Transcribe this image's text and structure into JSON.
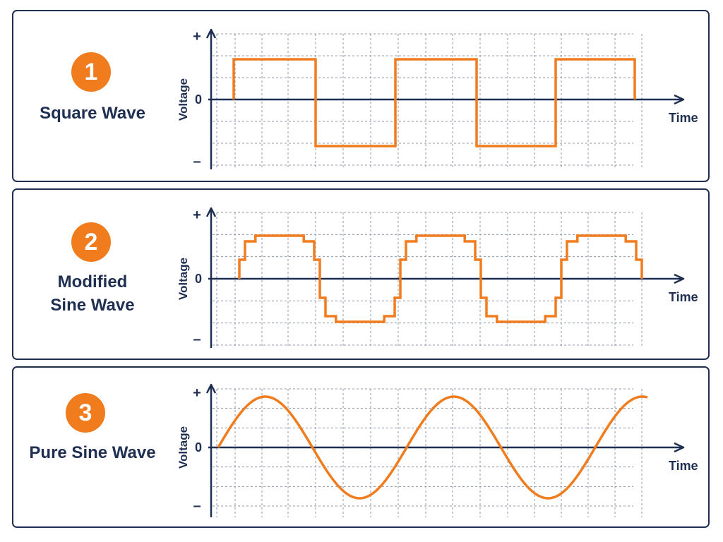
{
  "panels": [
    {
      "number": "1",
      "title_lines": [
        "Square Wave"
      ],
      "wave": "square",
      "axis": {
        "y_label": "Voltage",
        "x_label": "Time",
        "plus": "+",
        "zero": "0",
        "minus": "–"
      }
    },
    {
      "number": "2",
      "title_lines": [
        "Modified",
        "Sine Wave"
      ],
      "wave": "modified-sine",
      "axis": {
        "y_label": "Voltage",
        "x_label": "Time",
        "plus": "+",
        "zero": "0",
        "minus": "–"
      }
    },
    {
      "number": "3",
      "title_lines": [
        "Pure Sine Wave"
      ],
      "wave": "pure-sine",
      "axis": {
        "y_label": "Voltage",
        "x_label": "Time",
        "plus": "+",
        "zero": "0",
        "minus": "–"
      }
    }
  ],
  "colors": {
    "wave": "#f07c1e",
    "badge": "#f07c1e",
    "axis": "#1f2f52",
    "grid": "#8d97a8",
    "border": "#1f2f52"
  },
  "icons": {
    "badge": "numbered-circle-badge",
    "axis_arrow": "arrowhead"
  }
}
